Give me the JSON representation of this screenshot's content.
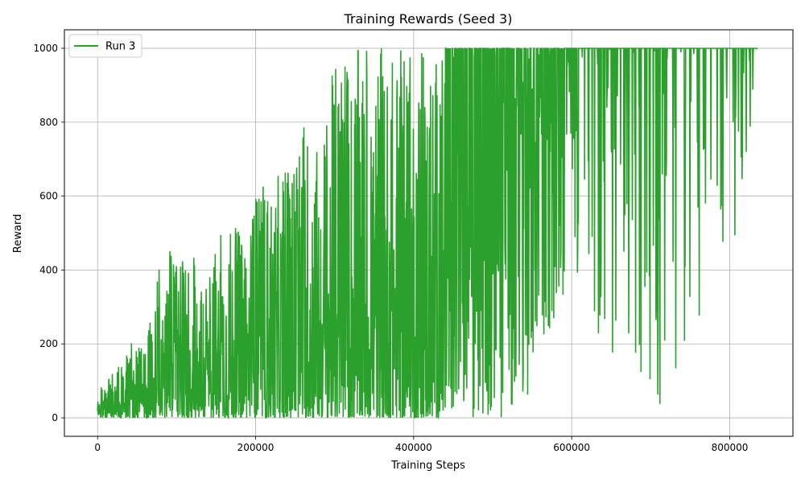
{
  "chart_data": {
    "type": "line",
    "title": "Training Rewards (Seed 3)",
    "xlabel": "Training Steps",
    "ylabel": "Reward",
    "xlim": [
      -42000,
      880000
    ],
    "ylim": [
      -50,
      1050
    ],
    "xticks": [
      0,
      200000,
      400000,
      600000,
      800000
    ],
    "xtick_labels": [
      "0",
      "200000",
      "400000",
      "600000",
      "800000"
    ],
    "yticks": [
      0,
      200,
      400,
      600,
      800,
      1000
    ],
    "ytick_labels": [
      "0",
      "200",
      "400",
      "600",
      "800",
      "1000"
    ],
    "grid": true,
    "legend_position": "top-left",
    "series": [
      {
        "name": "Run 3",
        "color": "#2ca02c",
        "envelope": {
          "x": [
            0,
            20000,
            40000,
            60000,
            80000,
            100000,
            120000,
            140000,
            160000,
            180000,
            200000,
            220000,
            240000,
            260000,
            280000,
            300000,
            320000,
            340000,
            360000,
            380000,
            400000,
            420000,
            440000,
            460000,
            480000,
            500000,
            520000,
            540000,
            560000,
            580000,
            600000,
            620000,
            640000,
            660000,
            680000,
            700000,
            720000,
            740000,
            760000,
            780000,
            800000,
            815000,
            835000
          ],
          "upper": [
            70,
            125,
            220,
            205,
            435,
            465,
            450,
            410,
            540,
            510,
            630,
            645,
            670,
            845,
            750,
            965,
            1000,
            1000,
            1000,
            1000,
            1000,
            1000,
            1000,
            1000,
            1000,
            1000,
            1000,
            1000,
            1000,
            1000,
            1000,
            1000,
            1000,
            1000,
            1000,
            1000,
            1000,
            1000,
            1000,
            1000,
            1000,
            1000,
            1000
          ],
          "lower": [
            0,
            0,
            0,
            0,
            0,
            0,
            0,
            0,
            0,
            0,
            0,
            0,
            0,
            0,
            0,
            0,
            0,
            0,
            0,
            0,
            0,
            0,
            0,
            0,
            0,
            0,
            0,
            0,
            150,
            280,
            360,
            390,
            140,
            160,
            85,
            15,
            25,
            40,
            65,
            430,
            430,
            530,
            1000
          ]
        }
      }
    ]
  }
}
